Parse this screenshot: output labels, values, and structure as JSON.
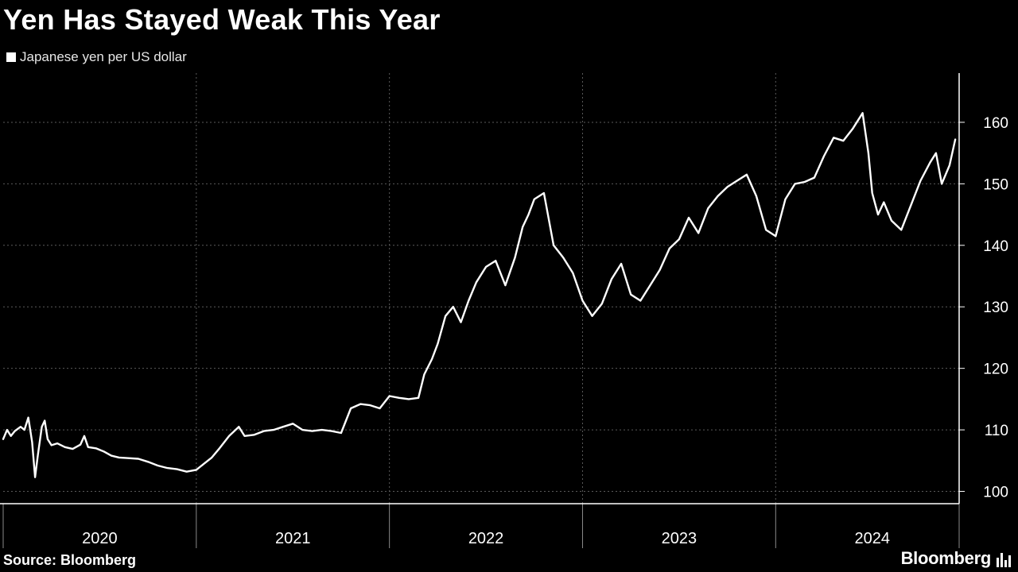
{
  "title": "Yen Has Stayed Weak This Year",
  "legend_label": "Japanese yen per US dollar",
  "source": "Source: Bloomberg",
  "brand": "Bloomberg",
  "brand_icon": "bar-chart-icon",
  "colors": {
    "background": "#000000",
    "line": "#ffffff",
    "grid": "#5a5a5a"
  },
  "chart_data": {
    "type": "line",
    "title": "Yen Has Stayed Weak This Year",
    "ylabel": "",
    "xlabel": "",
    "x_tick_labels": [
      "2020",
      "2021",
      "2022",
      "2023",
      "2024"
    ],
    "y_ticks": [
      100,
      110,
      120,
      130,
      140,
      150,
      160
    ],
    "ylim": [
      98,
      168
    ],
    "xlim": [
      2020.0,
      2024.95
    ],
    "grid": true,
    "legend_position": "top-left",
    "series": [
      {
        "name": "Japanese yen per US dollar",
        "x": [
          2020.0,
          2020.02,
          2020.04,
          2020.06,
          2020.09,
          2020.11,
          2020.13,
          2020.15,
          2020.165,
          2020.18,
          2020.2,
          2020.215,
          2020.23,
          2020.25,
          2020.28,
          2020.32,
          2020.36,
          2020.4,
          2020.42,
          2020.44,
          2020.48,
          2020.52,
          2020.56,
          2020.6,
          2020.65,
          2020.7,
          2020.75,
          2020.8,
          2020.85,
          2020.9,
          2020.95,
          2021.0,
          2021.04,
          2021.08,
          2021.12,
          2021.17,
          2021.22,
          2021.25,
          2021.3,
          2021.35,
          2021.4,
          2021.45,
          2021.5,
          2021.55,
          2021.6,
          2021.65,
          2021.7,
          2021.75,
          2021.8,
          2021.85,
          2021.9,
          2021.95,
          2022.0,
          2022.05,
          2022.1,
          2022.15,
          2022.18,
          2022.22,
          2022.25,
          2022.29,
          2022.33,
          2022.37,
          2022.41,
          2022.45,
          2022.5,
          2022.55,
          2022.6,
          2022.65,
          2022.69,
          2022.72,
          2022.75,
          2022.8,
          2022.85,
          2022.9,
          2022.95,
          2023.0,
          2023.05,
          2023.1,
          2023.15,
          2023.2,
          2023.25,
          2023.3,
          2023.35,
          2023.4,
          2023.45,
          2023.5,
          2023.55,
          2023.6,
          2023.65,
          2023.7,
          2023.75,
          2023.8,
          2023.85,
          2023.9,
          2023.95,
          2024.0,
          2024.05,
          2024.1,
          2024.15,
          2024.2,
          2024.25,
          2024.3,
          2024.35,
          2024.4,
          2024.45,
          2024.48,
          2024.5,
          2024.53,
          2024.56,
          2024.6,
          2024.65,
          2024.7,
          2024.75,
          2024.8,
          2024.83,
          2024.86,
          2024.9,
          2024.93
        ],
        "y": [
          108.5,
          110.0,
          109.0,
          109.8,
          110.5,
          110.0,
          112.0,
          108.0,
          102.3,
          106.0,
          110.5,
          111.5,
          108.5,
          107.5,
          107.8,
          107.2,
          106.9,
          107.6,
          109.0,
          107.2,
          107.0,
          106.5,
          105.8,
          105.5,
          105.4,
          105.3,
          104.8,
          104.2,
          103.8,
          103.6,
          103.2,
          103.5,
          104.5,
          105.5,
          107.0,
          109.0,
          110.5,
          109.0,
          109.2,
          109.8,
          110.0,
          110.5,
          111.0,
          110.0,
          109.8,
          110.0,
          109.8,
          109.5,
          113.5,
          114.2,
          114.0,
          113.5,
          115.5,
          115.2,
          115.0,
          115.2,
          119.0,
          121.5,
          124.0,
          128.5,
          130.0,
          127.5,
          131.0,
          134.0,
          136.5,
          137.5,
          133.5,
          138.0,
          143.0,
          145.0,
          147.5,
          148.5,
          140.0,
          138.0,
          135.5,
          131.0,
          128.5,
          130.5,
          134.5,
          137.0,
          132.0,
          131.0,
          133.5,
          136.0,
          139.5,
          141.0,
          144.5,
          142.0,
          146.0,
          148.0,
          149.5,
          150.5,
          151.5,
          148.0,
          142.5,
          141.5,
          147.5,
          150.0,
          150.3,
          151.0,
          154.5,
          157.5,
          157.0,
          159.0,
          161.5,
          155.0,
          148.5,
          145.0,
          147.0,
          144.0,
          142.5,
          146.5,
          150.5,
          153.5,
          155.0,
          150.0,
          153.0,
          157.2
        ]
      }
    ]
  }
}
